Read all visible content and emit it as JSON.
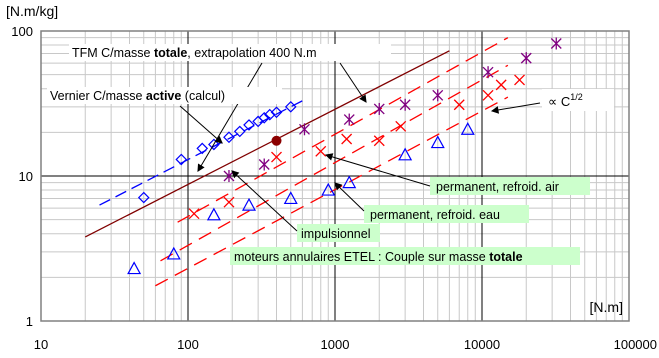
{
  "chart_data": {
    "type": "scatter",
    "xscale": "log",
    "yscale": "log",
    "xlim": [
      10,
      100000
    ],
    "ylim": [
      1,
      100
    ],
    "grid": true,
    "ylabel": "[N.m/kg]",
    "xlabel": "[N.m]",
    "xticks": [
      {
        "v": 10,
        "label": "10"
      },
      {
        "v": 100,
        "label": "100"
      },
      {
        "v": 1000,
        "label": "1000"
      },
      {
        "v": 10000,
        "label": "10000"
      },
      {
        "v": 100000,
        "label": "100000"
      }
    ],
    "yticks": [
      {
        "v": 1,
        "label": "1"
      },
      {
        "v": 10,
        "label": "10"
      },
      {
        "v": 100,
        "label": "100"
      }
    ],
    "series": [
      {
        "marker": "diamond",
        "color": "#0000ff",
        "points": [
          [
            50,
            7.1
          ],
          [
            90,
            13
          ],
          [
            125,
            15.5
          ],
          [
            150,
            16.5
          ],
          [
            190,
            18.5
          ],
          [
            225,
            20.3
          ],
          [
            260,
            22.5
          ],
          [
            300,
            23.8
          ],
          [
            330,
            25.2
          ],
          [
            360,
            26.5
          ],
          [
            400,
            27.5
          ],
          [
            500,
            30
          ]
        ]
      },
      {
        "marker": "triangle",
        "color": "#0000ff",
        "points": [
          [
            43,
            2.3
          ],
          [
            80,
            2.9
          ],
          [
            150,
            5.4
          ],
          [
            260,
            6.3
          ],
          [
            500,
            7
          ],
          [
            900,
            8
          ],
          [
            1250,
            9
          ],
          [
            3000,
            14
          ],
          [
            5000,
            17
          ],
          [
            8000,
            21
          ]
        ]
      },
      {
        "marker": "x",
        "color": "#ff0000",
        "points": [
          [
            110,
            5.5
          ],
          [
            190,
            6.6
          ],
          [
            400,
            13.5
          ],
          [
            800,
            14.8
          ],
          [
            1200,
            18
          ],
          [
            2000,
            17.5
          ],
          [
            2800,
            22
          ],
          [
            7000,
            31
          ],
          [
            11000,
            36
          ],
          [
            13500,
            42.5
          ],
          [
            18000,
            46
          ]
        ]
      },
      {
        "marker": "asterisk",
        "color": "#800080",
        "points": [
          [
            190,
            10
          ],
          [
            330,
            12
          ],
          [
            620,
            21
          ],
          [
            1250,
            24.5
          ],
          [
            2000,
            29
          ],
          [
            3000,
            31
          ],
          [
            5000,
            36
          ],
          [
            11000,
            52
          ],
          [
            20000,
            65
          ],
          [
            32000,
            82
          ]
        ]
      },
      {
        "marker": "dot",
        "color": "#8b0000",
        "points": [
          [
            400,
            17.5
          ]
        ]
      }
    ],
    "lines": [
      {
        "from": [
          25,
          6.3
        ],
        "to": [
          600,
          33
        ],
        "color": "#0000ff",
        "dash": "12,6"
      },
      {
        "from": [
          20,
          3.8
        ],
        "to": [
          6000,
          73
        ],
        "color": "#800000",
        "dash": ""
      },
      {
        "from": [
          85,
          4.8
        ],
        "to": [
          15000,
          90
        ],
        "color": "#ff0000",
        "dash": "14,8"
      },
      {
        "from": [
          65,
          2.6
        ],
        "to": [
          15000,
          58
        ],
        "color": "#ff0000",
        "dash": "14,8"
      },
      {
        "from": [
          60,
          1.75
        ],
        "to": [
          15000,
          35
        ],
        "color": "#ff0000",
        "dash": "14,8"
      }
    ],
    "annotations": {
      "tfm": {
        "prefix": "TFM C/masse ",
        "bold": "totale",
        "suffix": ", extrapolation 400 N.m"
      },
      "vernier": {
        "prefix": "Vernier C/masse ",
        "bold": "active",
        "suffix": " (calcul)"
      },
      "sqrt": {
        "base": "∝ C",
        "exp": "1/2"
      },
      "air": "permanent, refroid. air",
      "eau": "permanent, refroid. eau",
      "impulsionnel": "impulsionnel",
      "etel": {
        "prefix": "moteurs annulaires ETEL  : Couple sur masse ",
        "bold": "totale"
      }
    },
    "colors": {
      "annotation_bg": "#ccffcc",
      "plot_bg": "#ffffff",
      "major_grid": "#000000",
      "minor_grid": "#c8c8c8",
      "frame": "#808080"
    }
  }
}
